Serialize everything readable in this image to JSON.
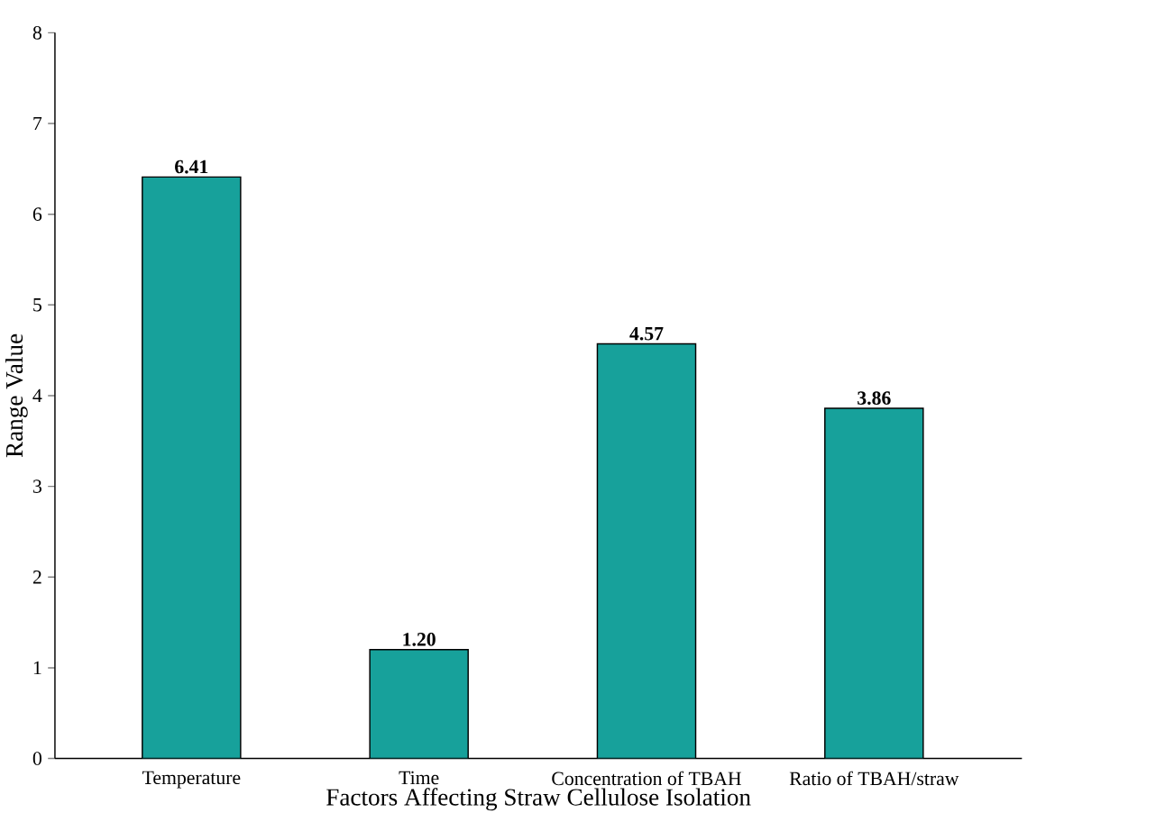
{
  "chart_data": {
    "type": "bar",
    "xlabel": "Factors Affecting Straw Cellulose Isolation",
    "ylabel": "Range Value",
    "categories": [
      "Temperature",
      "Time",
      "Concentration of TBAH",
      "Ratio of TBAH/straw"
    ],
    "values": [
      6.41,
      1.2,
      4.57,
      3.86
    ],
    "value_labels": [
      "6.41",
      "1.20",
      "4.57",
      "3.86"
    ],
    "color": "#17a19b",
    "ylim": [
      0,
      8
    ],
    "yticks": [
      0,
      1,
      2,
      3,
      4,
      5,
      6,
      7,
      8
    ],
    "grid": false
  }
}
